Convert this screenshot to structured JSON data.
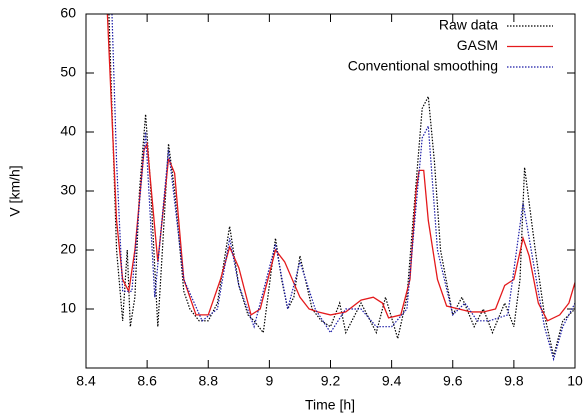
{
  "chart_data": {
    "type": "line",
    "xlabel": "Time [h]",
    "ylabel": "V [km/h]",
    "xlim": [
      8.4,
      10
    ],
    "xticks": [
      8.4,
      8.6,
      8.8,
      9,
      9.2,
      9.4,
      9.6,
      9.8,
      10
    ],
    "ylim": [
      0,
      60
    ],
    "yticks": [
      10,
      20,
      30,
      40,
      50,
      60
    ],
    "legend": "top-right",
    "series": [
      {
        "name": "Raw data",
        "color": "#000000",
        "dash": "dotted",
        "x": [
          8.475,
          8.5,
          8.52,
          8.535,
          8.545,
          8.56,
          8.575,
          8.595,
          8.61,
          8.635,
          8.65,
          8.67,
          8.69,
          8.72,
          8.74,
          8.77,
          8.8,
          8.83,
          8.87,
          8.9,
          8.93,
          8.95,
          8.98,
          9.0,
          9.02,
          9.04,
          9.06,
          9.08,
          9.1,
          9.14,
          9.17,
          9.2,
          9.23,
          9.25,
          9.28,
          9.3,
          9.35,
          9.38,
          9.42,
          9.45,
          9.47,
          9.5,
          9.52,
          9.54,
          9.56,
          9.6,
          9.63,
          9.67,
          9.7,
          9.73,
          9.77,
          9.8,
          9.82,
          9.835,
          9.87,
          9.9,
          9.93,
          9.96,
          10
        ],
        "values": [
          60,
          20,
          8,
          20,
          7,
          12,
          30,
          43,
          32,
          7,
          20,
          38,
          30,
          13,
          10,
          8,
          8,
          11,
          24,
          14,
          9,
          8,
          6,
          14,
          22,
          15,
          10,
          12,
          19,
          10,
          8,
          7,
          11,
          6,
          9,
          11,
          6,
          12,
          5,
          12,
          25,
          44,
          46,
          35,
          20,
          9,
          12,
          7,
          10,
          6,
          11,
          7,
          15,
          34,
          20,
          9,
          2,
          8,
          10
        ]
      },
      {
        "name": "GASM",
        "color": "#e41a1c",
        "dash": "solid",
        "x": [
          8.47,
          8.5,
          8.52,
          8.54,
          8.56,
          8.59,
          8.6,
          8.635,
          8.67,
          8.69,
          8.72,
          8.76,
          8.8,
          8.84,
          8.87,
          8.9,
          8.94,
          8.97,
          9.0,
          9.02,
          9.05,
          9.1,
          9.13,
          9.16,
          9.2,
          9.25,
          9.3,
          9.34,
          9.37,
          9.39,
          9.43,
          9.46,
          9.48,
          9.49,
          9.505,
          9.52,
          9.55,
          9.58,
          9.62,
          9.66,
          9.7,
          9.74,
          9.77,
          9.8,
          9.83,
          9.85,
          9.88,
          9.91,
          9.95,
          9.98,
          10
        ],
        "values": [
          60,
          25,
          15,
          13,
          20,
          37,
          38,
          18,
          35.5,
          33,
          15,
          9,
          9,
          15,
          20.5,
          17,
          9,
          10,
          16,
          20,
          18,
          12,
          10,
          9.5,
          9,
          9.5,
          11.5,
          12,
          11,
          8.5,
          9,
          15,
          30,
          33.5,
          33.5,
          25,
          15,
          10.5,
          10,
          9.5,
          9.5,
          10,
          14,
          15,
          22,
          19,
          11,
          8,
          9,
          11,
          14.5
        ]
      },
      {
        "name": "Conventional smoothing",
        "color": "#1a1aa6",
        "dash": "dotted",
        "x": [
          8.485,
          8.5,
          8.52,
          8.55,
          8.57,
          8.595,
          8.625,
          8.67,
          8.72,
          8.78,
          8.83,
          8.87,
          8.9,
          8.95,
          9.02,
          9.06,
          9.1,
          9.15,
          9.2,
          9.25,
          9.3,
          9.35,
          9.4,
          9.45,
          9.5,
          9.52,
          9.55,
          9.6,
          9.64,
          9.68,
          9.72,
          9.78,
          9.83,
          9.87,
          9.9,
          9.93,
          9.96,
          10
        ],
        "values": [
          60,
          35,
          13,
          13,
          25,
          40,
          12,
          37,
          15,
          8,
          10,
          22,
          14,
          7,
          21,
          10,
          18,
          10,
          6,
          10,
          10,
          7,
          7,
          10,
          39,
          41,
          20,
          9,
          11,
          8,
          8,
          9,
          28,
          16,
          7,
          1.5,
          7,
          11
        ]
      }
    ]
  }
}
